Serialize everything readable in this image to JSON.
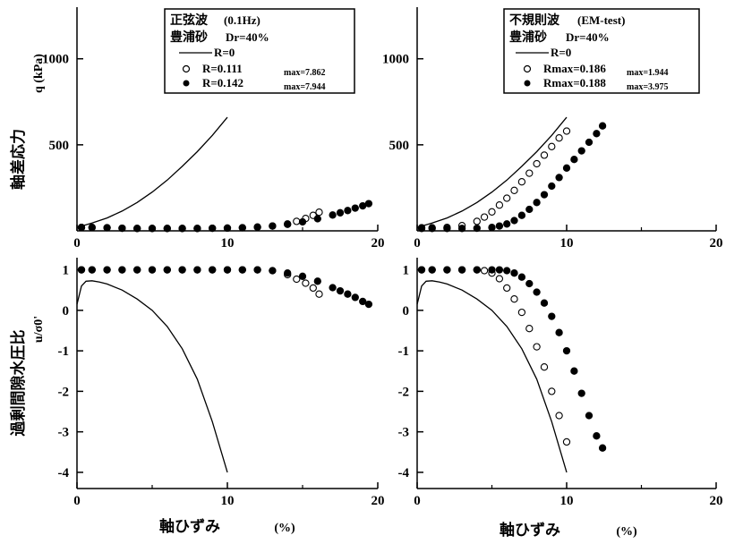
{
  "figure": {
    "ylabel_top_jp": "軸差応力",
    "ylabel_top_unit": "q (kPa)",
    "ylabel_bottom_jp": "過剰間隙水圧比",
    "ylabel_bottom_unit": "u/σ0'",
    "xlabel_jp": "軸ひずみ",
    "xlabel_unit": "(%)"
  },
  "legends": {
    "left": {
      "title_jp": "正弦波",
      "title_note": "(0.1Hz)",
      "sand_jp": "豊浦砂",
      "dr": "Dr=40%",
      "entries": [
        {
          "label": "R=0",
          "marker": "line"
        },
        {
          "label": "R=0.111",
          "marker": "open",
          "note": "max=7.862"
        },
        {
          "label": "R=0.142",
          "marker": "filled",
          "note": "max=7.944"
        }
      ]
    },
    "right": {
      "title_jp": "不規則波",
      "title_note": "(EM-test)",
      "sand_jp": "豊浦砂",
      "dr": "Dr=40%",
      "entries": [
        {
          "label": "R=0",
          "marker": "line"
        },
        {
          "label": "Rmax=0.186",
          "marker": "open",
          "note": "max=1.944"
        },
        {
          "label": "Rmax=0.188",
          "marker": "filled",
          "note": "max=3.975"
        }
      ]
    }
  },
  "chart_data": [
    {
      "panel": "top-left",
      "type": "scatter",
      "xlim": [
        0,
        20
      ],
      "ylim": [
        0,
        1300
      ],
      "xticks": [
        0,
        10,
        20
      ],
      "yticks": [
        500,
        1000
      ],
      "series": [
        {
          "name": "R=0",
          "style": "line",
          "x": [
            0,
            1,
            2,
            3,
            4,
            5,
            6,
            7,
            8,
            9,
            10
          ],
          "y": [
            20,
            45,
            75,
            115,
            165,
            225,
            295,
            375,
            460,
            555,
            660
          ]
        },
        {
          "name": "R=0.111",
          "style": "open",
          "x": [
            0.3,
            1,
            2,
            3,
            4,
            5,
            6,
            7,
            8,
            9,
            10,
            11,
            12,
            13,
            14,
            14.6,
            15.2,
            15.7,
            16.1
          ],
          "y": [
            20,
            20,
            18,
            15,
            14,
            14,
            14,
            14,
            14,
            15,
            16,
            18,
            22,
            28,
            40,
            55,
            72,
            90,
            108
          ]
        },
        {
          "name": "R=0.142",
          "style": "filled",
          "x": [
            0.3,
            1,
            2,
            3,
            4,
            5,
            6,
            7,
            8,
            9,
            10,
            11,
            12,
            13,
            14,
            15,
            16,
            17,
            17.5,
            18,
            18.5,
            19,
            19.4
          ],
          "y": [
            20,
            20,
            18,
            15,
            14,
            14,
            14,
            14,
            14,
            15,
            16,
            18,
            22,
            28,
            38,
            52,
            70,
            92,
            105,
            118,
            132,
            145,
            158
          ]
        }
      ]
    },
    {
      "panel": "top-right",
      "type": "scatter",
      "xlim": [
        0,
        20
      ],
      "ylim": [
        0,
        1300
      ],
      "xticks": [
        0,
        10,
        20
      ],
      "yticks": [
        500,
        1000
      ],
      "series": [
        {
          "name": "R=0",
          "style": "line",
          "x": [
            0,
            1,
            2,
            3,
            4,
            5,
            6,
            7,
            8,
            9,
            10
          ],
          "y": [
            20,
            45,
            75,
            115,
            165,
            225,
            295,
            375,
            460,
            555,
            660
          ]
        },
        {
          "name": "Rmax=0.186",
          "style": "open",
          "x": [
            0.3,
            1,
            2,
            3,
            4,
            4.5,
            5,
            5.5,
            6,
            6.5,
            7,
            7.5,
            8,
            8.5,
            9,
            9.5,
            10
          ],
          "y": [
            18,
            18,
            20,
            30,
            55,
            80,
            110,
            150,
            190,
            235,
            285,
            335,
            390,
            440,
            490,
            540,
            580
          ]
        },
        {
          "name": "Rmax=0.188",
          "style": "filled",
          "x": [
            0.3,
            1,
            2,
            3,
            4,
            5,
            5.5,
            6,
            6.5,
            7,
            7.5,
            8,
            8.5,
            9,
            9.5,
            10,
            10.5,
            11,
            11.5,
            12,
            12.4
          ],
          "y": [
            14,
            14,
            14,
            14,
            15,
            20,
            28,
            40,
            60,
            90,
            125,
            165,
            210,
            260,
            310,
            365,
            415,
            465,
            515,
            565,
            610
          ]
        }
      ]
    },
    {
      "panel": "bottom-left",
      "type": "scatter",
      "xlim": [
        0,
        20
      ],
      "ylim": [
        -4.4,
        1.3
      ],
      "xticks": [
        0,
        10,
        20
      ],
      "yticks": [
        1,
        0,
        -1,
        -2,
        -3,
        -4
      ],
      "series": [
        {
          "name": "R=0",
          "style": "line",
          "x": [
            0,
            0.3,
            0.6,
            1,
            1.5,
            2,
            3,
            4,
            5,
            6,
            7,
            8,
            9,
            10
          ],
          "y": [
            0.15,
            0.6,
            0.72,
            0.73,
            0.7,
            0.65,
            0.5,
            0.28,
            0,
            -0.4,
            -0.95,
            -1.7,
            -2.75,
            -4.0
          ]
        },
        {
          "name": "R=0.111",
          "style": "open",
          "x": [
            0.3,
            1,
            2,
            3,
            4,
            5,
            6,
            7,
            8,
            9,
            10,
            11,
            12,
            13,
            14,
            14.6,
            15.2,
            15.7,
            16.1
          ],
          "y": [
            1.0,
            1.0,
            1.0,
            1.0,
            1.0,
            1.0,
            1.0,
            1.0,
            1.0,
            1.0,
            1.0,
            1.0,
            1.0,
            0.98,
            0.88,
            0.77,
            0.67,
            0.55,
            0.4
          ]
        },
        {
          "name": "R=0.142",
          "style": "filled",
          "x": [
            0.3,
            1,
            2,
            3,
            4,
            5,
            6,
            7,
            8,
            9,
            10,
            11,
            12,
            13,
            14,
            15,
            16,
            17,
            17.5,
            18,
            18.5,
            19,
            19.4
          ],
          "y": [
            1.0,
            1.0,
            1.0,
            1.0,
            1.0,
            1.0,
            1.0,
            1.0,
            1.0,
            1.0,
            1.0,
            1.0,
            1.0,
            0.98,
            0.92,
            0.84,
            0.72,
            0.56,
            0.48,
            0.4,
            0.32,
            0.22,
            0.15
          ]
        }
      ]
    },
    {
      "panel": "bottom-right",
      "type": "scatter",
      "xlim": [
        0,
        20
      ],
      "ylim": [
        -4.4,
        1.3
      ],
      "xticks": [
        0,
        10,
        20
      ],
      "yticks": [
        1,
        0,
        -1,
        -2,
        -3,
        -4
      ],
      "series": [
        {
          "name": "R=0",
          "style": "line",
          "x": [
            0,
            0.3,
            0.6,
            1,
            1.5,
            2,
            3,
            4,
            5,
            6,
            7,
            8,
            9,
            10
          ],
          "y": [
            0.15,
            0.6,
            0.72,
            0.73,
            0.7,
            0.65,
            0.5,
            0.28,
            0,
            -0.4,
            -0.95,
            -1.7,
            -2.75,
            -4.0
          ]
        },
        {
          "name": "Rmax=0.186",
          "style": "open",
          "x": [
            0.3,
            1,
            2,
            3,
            4,
            4.5,
            5,
            5.5,
            6,
            6.5,
            7,
            7.5,
            8,
            8.5,
            9,
            9.5,
            10
          ],
          "y": [
            1.0,
            1.0,
            1.0,
            1.0,
            1.0,
            0.98,
            0.92,
            0.78,
            0.55,
            0.28,
            -0.05,
            -0.45,
            -0.9,
            -1.4,
            -2.0,
            -2.6,
            -3.25
          ]
        },
        {
          "name": "Rmax=0.188",
          "style": "filled",
          "x": [
            0.3,
            1,
            2,
            3,
            4,
            5,
            5.5,
            6,
            6.5,
            7,
            7.5,
            8,
            8.5,
            9,
            9.5,
            10,
            10.5,
            11,
            11.5,
            12,
            12.4
          ],
          "y": [
            1.0,
            1.0,
            1.0,
            1.0,
            1.0,
            1.0,
            1.0,
            0.98,
            0.92,
            0.82,
            0.66,
            0.45,
            0.18,
            -0.15,
            -0.55,
            -1.0,
            -1.5,
            -2.05,
            -2.6,
            -3.1,
            -3.4
          ]
        }
      ]
    }
  ]
}
